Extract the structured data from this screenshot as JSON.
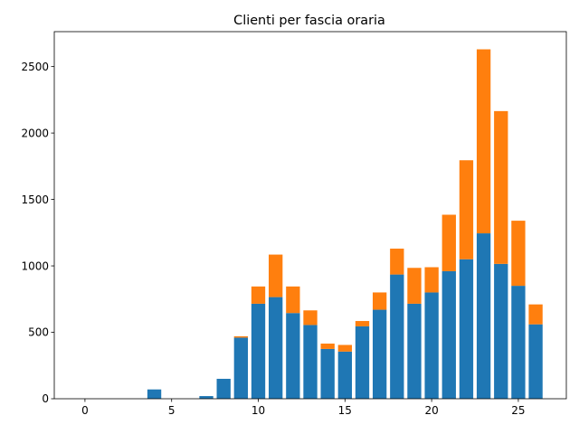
{
  "chart_data": {
    "type": "bar",
    "stacked": true,
    "title": "Clienti per fascia oraria",
    "xlabel": "",
    "ylabel": "",
    "xlim": [
      -1.77,
      27.77
    ],
    "ylim": [
      0,
      2763
    ],
    "x_ticks": [
      0,
      5,
      10,
      15,
      20,
      25
    ],
    "y_ticks": [
      0,
      500,
      1000,
      1500,
      2000,
      2500
    ],
    "grid": false,
    "legend": "none",
    "bar_width": 0.8,
    "x": [
      0,
      1,
      2,
      3,
      4,
      5,
      6,
      7,
      8,
      9,
      10,
      11,
      12,
      13,
      14,
      15,
      16,
      17,
      18,
      19,
      20,
      21,
      22,
      23,
      24,
      25,
      26
    ],
    "series": [
      {
        "color": "#1f77b4",
        "values": [
          0,
          0,
          0,
          0,
          70,
          0,
          0,
          20,
          150,
          460,
          715,
          765,
          645,
          555,
          375,
          355,
          545,
          670,
          935,
          715,
          800,
          960,
          1050,
          1245,
          1015,
          850,
          560
        ]
      },
      {
        "color": "#ff7f0e",
        "values": [
          0,
          0,
          0,
          0,
          0,
          0,
          0,
          0,
          0,
          10,
          130,
          320,
          200,
          110,
          40,
          50,
          40,
          130,
          195,
          270,
          190,
          425,
          745,
          1385,
          1150,
          490,
          150
        ]
      }
    ]
  }
}
